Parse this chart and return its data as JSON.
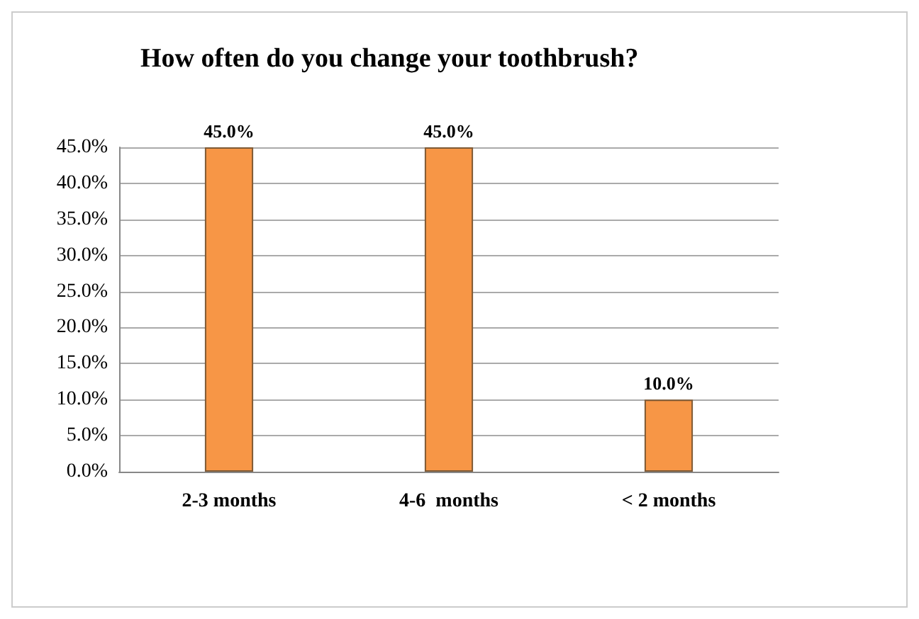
{
  "chart_data": {
    "type": "bar",
    "title": "How often do you change your toothbrush?",
    "categories": [
      "2-3 months",
      "4-6  months",
      "< 2 months"
    ],
    "series": [
      {
        "color": "#f79646",
        "values": [
          45,
          45,
          10
        ],
        "value_labels": [
          "45.0%",
          "45.0%",
          "10.0%"
        ]
      }
    ],
    "ylim": [
      0,
      45
    ],
    "yticks": [
      {
        "value": 0,
        "label": "0.0%"
      },
      {
        "value": 5,
        "label": "5.0%"
      },
      {
        "value": 10,
        "label": "10.0%"
      },
      {
        "value": 15,
        "label": "15.0%"
      },
      {
        "value": 20,
        "label": "20.0%"
      },
      {
        "value": 25,
        "label": "25.0%"
      },
      {
        "value": 30,
        "label": "30.0%"
      },
      {
        "value": 35,
        "label": "35.0%"
      },
      {
        "value": 40,
        "label": "40.0%"
      },
      {
        "value": 45,
        "label": "45.0%"
      }
    ],
    "grid": "y"
  }
}
